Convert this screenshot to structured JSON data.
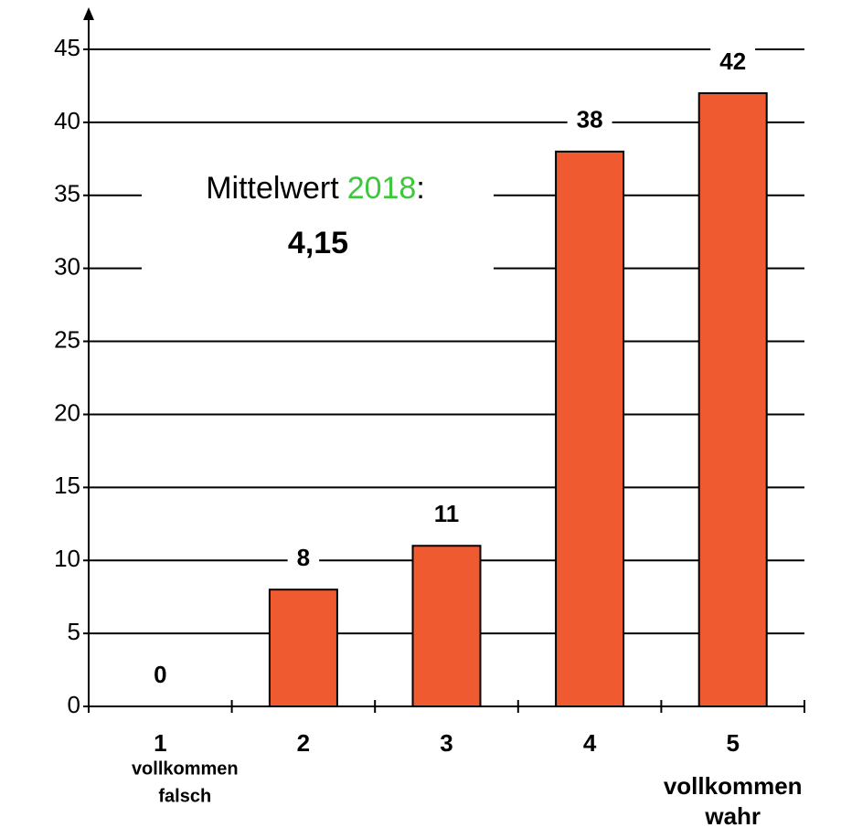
{
  "chart_data": {
    "type": "bar",
    "categories": [
      "1",
      "2",
      "3",
      "4",
      "5"
    ],
    "values": [
      0,
      8,
      11,
      38,
      42
    ],
    "color": "#f05a30",
    "ylim": [
      0,
      45
    ],
    "yticks": [
      0,
      5,
      10,
      15,
      20,
      25,
      30,
      35,
      40,
      45
    ],
    "grid": true,
    "category_notes": [
      {
        "index": 0,
        "lines": [
          "vollkommen",
          "falsch"
        ]
      },
      {
        "index": 4,
        "lines": [
          "vollkommen",
          "wahr"
        ]
      }
    ],
    "annotation": {
      "label": "Mittelwert",
      "year": "2018",
      "colon": ":",
      "value": "4,15",
      "year_color": "#3cc83c"
    }
  }
}
